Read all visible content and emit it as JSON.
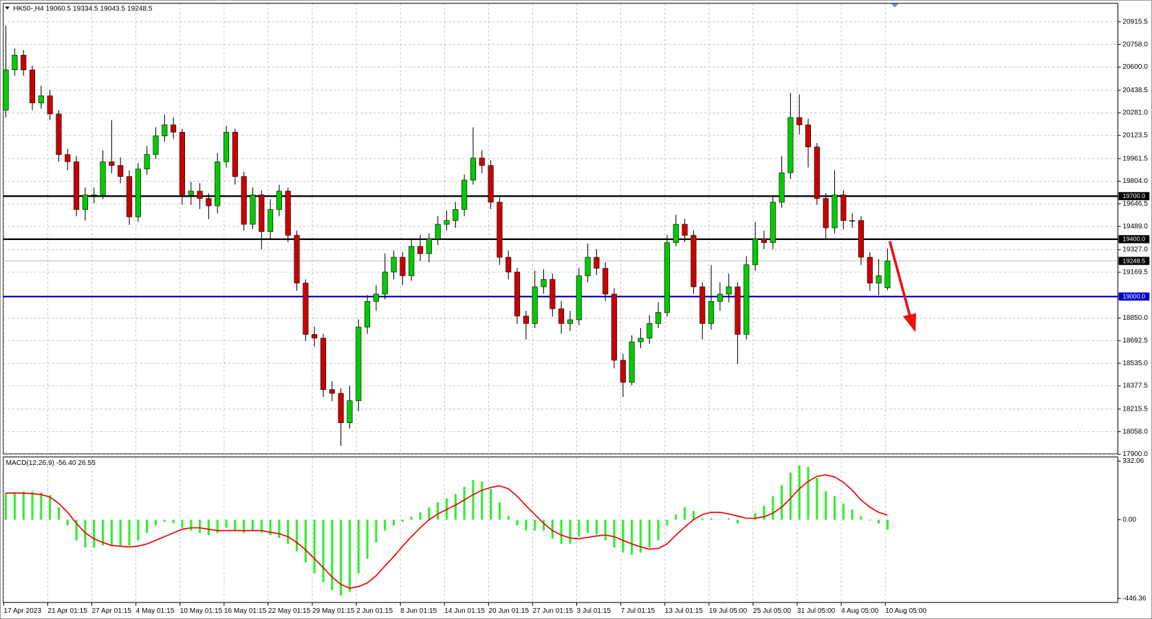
{
  "chart_data": [
    {
      "type": "candlestick",
      "title": "HK50-,H4  19060.5 19334.5 19043.5 19248.5",
      "categories": [
        "17 Apr 2023",
        null,
        null,
        null,
        null,
        "21 Apr 01:15",
        null,
        null,
        null,
        null,
        "27 Apr 01:15",
        null,
        null,
        null,
        null,
        "4 May 01:15",
        null,
        null,
        null,
        null,
        "10 May 01:15",
        null,
        null,
        null,
        null,
        "16 May 01:15",
        null,
        null,
        null,
        null,
        "22 May 01:15",
        null,
        null,
        null,
        null,
        "29 May 01:15",
        null,
        null,
        null,
        null,
        "2 Jun 01:15",
        null,
        null,
        null,
        null,
        "8 Jun 01:15",
        null,
        null,
        null,
        null,
        "14 Jun 01:15",
        null,
        null,
        null,
        null,
        "20 Jun 01:15",
        null,
        null,
        null,
        null,
        "27 Jun 01:15",
        null,
        null,
        null,
        null,
        "3 Jul 01:15",
        null,
        null,
        null,
        null,
        "7 Jul 01:15",
        null,
        null,
        null,
        null,
        "13 Jul 01:15",
        null,
        null,
        null,
        null,
        "19 Jul 05:00",
        null,
        null,
        null,
        null,
        "25 Jul 05:00",
        null,
        null,
        null,
        null,
        "31 Jul 05:00",
        null,
        null,
        null,
        null,
        "4 Aug 05:00",
        null,
        null,
        null,
        null,
        "10 Aug 05:00"
      ],
      "open": [
        20300,
        20580,
        20683,
        20580,
        20350,
        20400,
        20273,
        19990,
        19940,
        19607,
        19709,
        19709,
        19940,
        19914,
        19837,
        19556,
        19889,
        19991,
        20120,
        20197,
        20146,
        19709,
        19735,
        19684,
        19633,
        19940,
        20146,
        19837,
        19504,
        19709,
        19453,
        19607,
        19735,
        19427,
        19094,
        18736,
        18710,
        18351,
        18325,
        18120,
        18274,
        18787,
        18966,
        19017,
        19171,
        19274,
        19145,
        19350,
        19299,
        19402,
        19504,
        19530,
        19607,
        19812,
        19966,
        19914,
        19658,
        19274,
        19171,
        18864,
        18812,
        19068,
        19120,
        18915,
        18812,
        18838,
        19145,
        19274,
        19197,
        19017,
        18556,
        18402,
        18684,
        18710,
        18812,
        18889,
        19376,
        19504,
        19427,
        19068,
        18812,
        18966,
        19017,
        19068,
        18736,
        19222,
        19402,
        19376,
        19658,
        19863,
        20248,
        20197,
        20043,
        19684,
        19479,
        19709,
        19530,
        19530,
        19274,
        19094,
        19060.5
      ],
      "high": [
        20888,
        20730,
        20720,
        20610,
        20470,
        20440,
        20300,
        20030,
        19980,
        19760,
        19760,
        20020,
        20230,
        19970,
        19880,
        19930,
        20050,
        20180,
        20270,
        20250,
        20170,
        19800,
        19790,
        19720,
        20000,
        20190,
        20170,
        19870,
        19760,
        19740,
        19680,
        19780,
        19760,
        19460,
        19120,
        18790,
        18740,
        18410,
        18360,
        18380,
        18840,
        19010,
        19080,
        19300,
        19320,
        19310,
        19400,
        19430,
        19440,
        19560,
        19600,
        19660,
        19850,
        20180,
        20020,
        19950,
        19690,
        19320,
        19200,
        18900,
        19180,
        19190,
        19160,
        18970,
        18900,
        19200,
        19370,
        19330,
        19240,
        19060,
        18600,
        18730,
        18780,
        18870,
        18960,
        19430,
        19570,
        19540,
        19460,
        19100,
        19220,
        19100,
        19160,
        19100,
        19280,
        19520,
        19460,
        19700,
        19980,
        20420,
        20410,
        20240,
        20070,
        19720,
        19880,
        19740,
        19580,
        19560,
        19310,
        19260,
        19334.5
      ],
      "low": [
        20250,
        20540,
        20540,
        20300,
        20310,
        20230,
        19940,
        19880,
        19560,
        19530,
        19650,
        19680,
        19860,
        19790,
        19500,
        19520,
        19850,
        19960,
        20080,
        20100,
        19640,
        19640,
        19610,
        19540,
        19580,
        19900,
        19780,
        19460,
        19470,
        19330,
        19400,
        19560,
        19380,
        19040,
        18690,
        18650,
        18300,
        18270,
        17960,
        18080,
        18200,
        18740,
        18900,
        18980,
        19120,
        19080,
        19110,
        19250,
        19240,
        19360,
        19460,
        19480,
        19560,
        19780,
        19860,
        19610,
        19220,
        19120,
        18810,
        18700,
        18780,
        19020,
        18860,
        18740,
        18760,
        18800,
        19100,
        19150,
        18970,
        18500,
        18300,
        18380,
        18640,
        18670,
        18780,
        18860,
        19350,
        19380,
        19020,
        18700,
        18770,
        18900,
        18960,
        18530,
        18700,
        19180,
        19330,
        19330,
        19620,
        19820,
        20130,
        19900,
        19640,
        19400,
        19440,
        19470,
        19480,
        19220,
        19040,
        19010,
        19043.5
      ],
      "close": [
        20580,
        20683,
        20580,
        20350,
        20400,
        20273,
        19990,
        19940,
        19607,
        19709,
        19709,
        19940,
        19914,
        19837,
        19556,
        19889,
        19991,
        20120,
        20197,
        20146,
        19709,
        19735,
        19684,
        19633,
        19940,
        20146,
        19837,
        19504,
        19709,
        19453,
        19607,
        19735,
        19427,
        19094,
        18736,
        18710,
        18351,
        18325,
        18120,
        18274,
        18787,
        18966,
        19017,
        19171,
        19274,
        19145,
        19350,
        19299,
        19402,
        19504,
        19530,
        19607,
        19812,
        19966,
        19914,
        19658,
        19274,
        19171,
        18864,
        18812,
        19068,
        19120,
        18915,
        18812,
        18838,
        19145,
        19274,
        19197,
        19017,
        18556,
        18402,
        18684,
        18710,
        18812,
        18889,
        19376,
        19504,
        19427,
        19068,
        18812,
        18966,
        19017,
        19068,
        18736,
        19222,
        19402,
        19376,
        19658,
        19863,
        20248,
        20197,
        20043,
        19684,
        19479,
        19709,
        19530,
        19530,
        19274,
        19094,
        19145,
        19248.5
      ],
      "up_color": "#00cc00",
      "down_color": "#cc0000",
      "ylim": [
        17900,
        21042
      ],
      "yticks": [
        20915.5,
        {
          "value": 20758,
          "label": "20758.0"
        },
        {
          "value": 20600,
          "label": "20600.0"
        },
        20438.5,
        {
          "value": 20281,
          "label": "20281.0"
        },
        20123.5,
        19961.5,
        {
          "value": 19804,
          "label": "19804.0"
        },
        19646.5,
        {
          "value": 19489,
          "label": "19489.0"
        },
        {
          "value": 19327,
          "label": "19327.0"
        },
        19169.5,
        {
          "value": 18850,
          "label": "18850.0"
        },
        18692.5,
        {
          "value": 18535,
          "label": "18535.0"
        },
        18377.5,
        18215.5,
        {
          "value": 18058,
          "label": "18058.0"
        },
        {
          "value": 17900,
          "label": "17900.0"
        }
      ],
      "levels": [
        {
          "value": 19700,
          "label": "19700.0",
          "color": "#000000"
        },
        {
          "value": 19400,
          "label": "19400.0",
          "color": "#000000"
        },
        {
          "value": 19000,
          "label": "19000.0",
          "color": "#0000cc"
        },
        {
          "value": 19248.5,
          "label": "19248.5",
          "color": "#b0b0b0"
        }
      ],
      "grid": true
    },
    {
      "type": "macd",
      "title": "MACD(12,26,9) -56.40 26.55",
      "histogram": {
        "color": "#33ee33",
        "values": [
          154,
          154,
          160,
          158,
          154,
          140,
          70,
          -33,
          -117,
          -158,
          -158,
          -146,
          -146,
          -146,
          -146,
          -117,
          -75,
          -33,
          -12,
          -20,
          -46,
          -62,
          -75,
          -87,
          -75,
          -46,
          -62,
          -75,
          -62,
          -75,
          -87,
          -104,
          -137,
          -179,
          -242,
          -304,
          -354,
          -400,
          -429,
          -408,
          -304,
          -221,
          -129,
          -62,
          -33,
          -12,
          17,
          42,
          71,
          100,
          121,
          146,
          187,
          225,
          217,
          175,
          100,
          21,
          -33,
          -62,
          -62,
          -62,
          -108,
          -137,
          -137,
          -96,
          -75,
          -83,
          -117,
          -158,
          -187,
          -200,
          -187,
          -158,
          -117,
          -33,
          29,
          71,
          50,
          8,
          8,
          0,
          8,
          -21,
          0,
          37,
          79,
          133,
          196,
          267,
          308,
          300,
          237,
          162,
          133,
          92,
          58,
          21,
          -4,
          -21,
          -56.4
        ]
      },
      "signal": {
        "color": "#ee0000",
        "values": [
          150,
          152,
          150,
          148,
          142,
          129,
          92,
          42,
          -21,
          -75,
          -108,
          -129,
          -146,
          -150,
          -154,
          -150,
          -137,
          -117,
          -96,
          -75,
          -54,
          -46,
          -46,
          -54,
          -62,
          -62,
          -62,
          -62,
          -62,
          -62,
          -71,
          -79,
          -96,
          -129,
          -171,
          -221,
          -271,
          -325,
          -367,
          -388,
          -379,
          -358,
          -317,
          -262,
          -208,
          -150,
          -96,
          -46,
          0,
          33,
          58,
          83,
          112,
          142,
          167,
          183,
          192,
          175,
          133,
          79,
          29,
          -21,
          -62,
          -87,
          -104,
          -108,
          -100,
          -92,
          -87,
          -96,
          -117,
          -137,
          -154,
          -167,
          -163,
          -137,
          -87,
          -42,
          0,
          29,
          42,
          42,
          33,
          21,
          8,
          8,
          17,
          37,
          71,
          121,
          175,
          217,
          246,
          254,
          242,
          212,
          167,
          112,
          71,
          42,
          26.55
        ]
      },
      "ylim": [
        -471,
        358
      ],
      "yticks": [
        332.06,
        {
          "value": 0,
          "label": "0.00"
        },
        -446.36
      ]
    }
  ]
}
